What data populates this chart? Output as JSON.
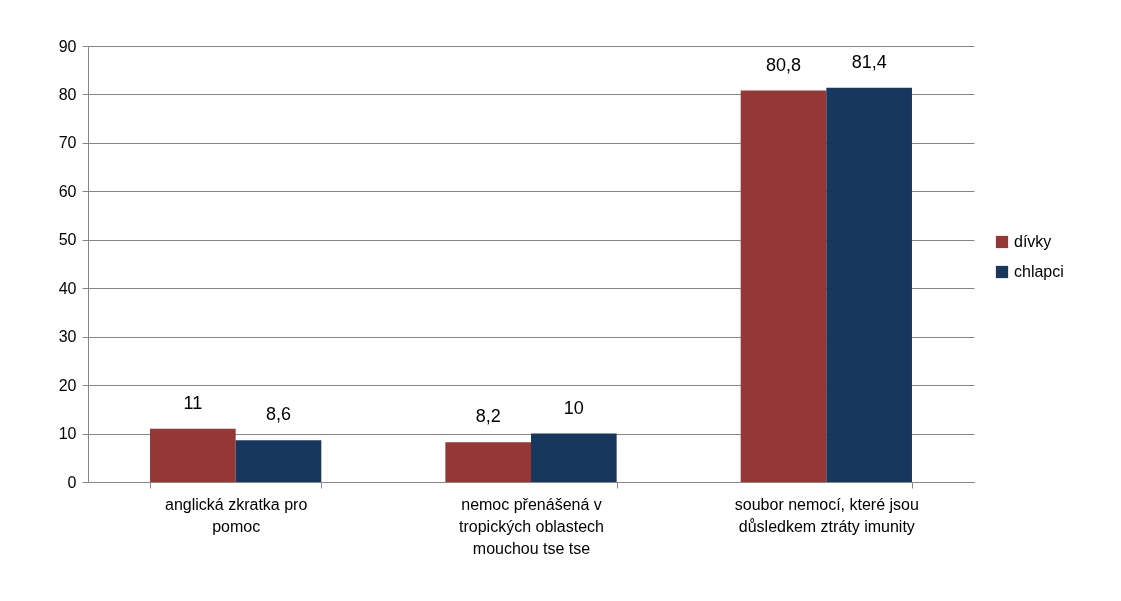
{
  "chart_data": {
    "type": "bar",
    "categories": [
      "anglická zkratka pro pomoc",
      "nemoc přenášená v tropických oblastech mouchou tse tse",
      "soubor nemocí, které jsou důsledkem ztráty imunity"
    ],
    "series": [
      {
        "name": "dívky",
        "color": "#953735",
        "values": [
          11,
          8.2,
          80.8
        ],
        "value_labels": [
          "11",
          "8,2",
          "80,8"
        ]
      },
      {
        "name": "chlapci",
        "color": "#17375e",
        "values": [
          8.6,
          10,
          81.4
        ],
        "value_labels": [
          "8,6",
          "10",
          "81,4"
        ]
      }
    ],
    "ylim": [
      0,
      90
    ],
    "yticks": [
      0,
      10,
      20,
      30,
      40,
      50,
      60,
      70,
      80,
      90
    ],
    "grid": "y",
    "legend": "right"
  }
}
